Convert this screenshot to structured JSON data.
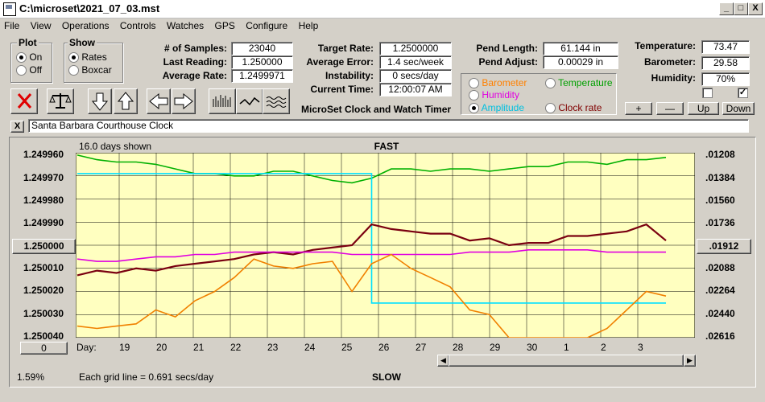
{
  "window": {
    "title": "C:\\microset\\2021_07_03.mst"
  },
  "window_controls": {
    "minimize": "_",
    "maximize": "□",
    "close": "X"
  },
  "menu": [
    "File",
    "View",
    "Operations",
    "Controls",
    "Watches",
    "GPS",
    "Configure",
    "Help"
  ],
  "plot_group": {
    "title": "Plot",
    "options": [
      "On",
      "Off"
    ],
    "selected": "On"
  },
  "show_group": {
    "title": "Show",
    "options": [
      "Rates",
      "Boxcar"
    ],
    "selected": "Rates"
  },
  "stats": {
    "samples_label": "# of Samples:",
    "samples": "23040",
    "last_reading_label": "Last Reading:",
    "last_reading": "1.250000",
    "average_rate_label": "Average Rate:",
    "average_rate": "1.2499971"
  },
  "rates": {
    "target_rate_label": "Target Rate:",
    "target_rate": "1.2500000",
    "average_error_label": "Average Error:",
    "average_error": "1.4 sec/week",
    "instability_label": "Instability:",
    "instability": "0 secs/day",
    "current_time_label": "Current Time:",
    "current_time": "12:00:07 AM"
  },
  "pend": {
    "length_label": "Pend Length:",
    "length": "61.144 in",
    "adjust_label": "Pend Adjust:",
    "adjust": "0.00029 in"
  },
  "env": {
    "temperature_label": "Temperature:",
    "temperature": "73.47",
    "barometer_label": "Barometer:",
    "barometer": "29.58",
    "humidity_label": "Humidity:",
    "humidity": "70%"
  },
  "env_checks": [
    false,
    true
  ],
  "env_buttons": [
    "+",
    "—",
    "Up",
    "Down"
  ],
  "app_caption": "MicroSet Clock and Watch Timer",
  "overlay_options": [
    {
      "label": "Barometer",
      "color": "#ff8000",
      "selected": false
    },
    {
      "label": "Temperature",
      "color": "#00a000",
      "selected": false
    },
    {
      "label": "Humidity",
      "color": "#e000e0",
      "selected": false
    },
    {
      "label": "Amplitude",
      "color": "#00c0e0",
      "selected": true
    },
    {
      "label": "Clock rate",
      "color": "#800000",
      "selected": false
    }
  ],
  "clock_name": "Santa Barbara Courthouse Clock",
  "clear_label": "X",
  "chart_data": {
    "type": "line",
    "days_shown": "16.0 days shown",
    "top_label": "FAST",
    "bottom_label": "SLOW",
    "grid_note": "Each grid line = 0.691 secs/day",
    "left_axis": [
      "1.249960",
      "1.249970",
      "1.249980",
      "1.249990",
      "1.250000",
      "1.250010",
      "1.250020",
      "1.250030",
      "1.250040"
    ],
    "right_axis": [
      ".01208",
      ".01384",
      ".01560",
      ".01736",
      ".01912",
      ".02088",
      ".02264",
      ".02440",
      ".02616"
    ],
    "center_left": "1.250000",
    "center_right": ".01912",
    "day_prefix": "Day:",
    "days": [
      "19",
      "20",
      "21",
      "22",
      "23",
      "24",
      "25",
      "26",
      "27",
      "28",
      "29",
      "30",
      "1",
      "2",
      "3"
    ],
    "ylim": [
      1.24996,
      1.25004
    ],
    "series": [
      {
        "id": "temperature",
        "color": "#00b000",
        "values": [
          1.249961,
          1.249963,
          1.249964,
          1.249964,
          1.249965,
          1.249967,
          1.249969,
          1.249969,
          1.24997,
          1.24997,
          1.249968,
          1.249968,
          1.24997,
          1.249972,
          1.249973,
          1.249971,
          1.249967,
          1.249967,
          1.249968,
          1.249967,
          1.249967,
          1.249968,
          1.249967,
          1.249966,
          1.249966,
          1.249964,
          1.249964,
          1.249965,
          1.249963,
          1.249963,
          1.249962
        ]
      },
      {
        "id": "amplitude",
        "color": "#00e0ff",
        "values": [
          1.249969,
          1.249969,
          1.249969,
          1.249969,
          1.249969,
          1.249969,
          1.249969,
          1.249969,
          1.249969,
          1.249969,
          1.249969,
          1.249969,
          1.249969,
          1.249969,
          1.249969,
          1.250025,
          1.250025,
          1.250025,
          1.250025,
          1.250025,
          1.250025,
          1.250025,
          1.250025,
          1.250025,
          1.250025,
          1.250025,
          1.250025,
          1.250025,
          1.250025,
          1.250025,
          1.250025
        ]
      },
      {
        "id": "clock_rate",
        "color": "#7a0010",
        "values": [
          1.250013,
          1.250011,
          1.250012,
          1.25001,
          1.250011,
          1.250009,
          1.250008,
          1.250007,
          1.250006,
          1.250004,
          1.250003,
          1.250004,
          1.250002,
          1.250001,
          1.25,
          1.249991,
          1.249993,
          1.249994,
          1.249995,
          1.249995,
          1.249998,
          1.249997,
          1.25,
          1.249999,
          1.249999,
          1.249996,
          1.249996,
          1.249995,
          1.249994,
          1.249991,
          1.249998
        ]
      },
      {
        "id": "humidity",
        "color": "#e000e0",
        "values": [
          1.250006,
          1.250007,
          1.250007,
          1.250006,
          1.250005,
          1.250005,
          1.250004,
          1.250004,
          1.250003,
          1.250003,
          1.250003,
          1.250003,
          1.250003,
          1.250003,
          1.250004,
          1.250004,
          1.250004,
          1.250004,
          1.250004,
          1.250004,
          1.250003,
          1.250003,
          1.250003,
          1.250002,
          1.250002,
          1.250002,
          1.250002,
          1.250003,
          1.250003,
          1.250003,
          1.250003
        ]
      },
      {
        "id": "barometer",
        "color": "#f08000",
        "values": [
          1.250035,
          1.250036,
          1.250035,
          1.250034,
          1.250028,
          1.250031,
          1.250024,
          1.25002,
          1.250014,
          1.250006,
          1.250009,
          1.25001,
          1.250008,
          1.250007,
          1.25002,
          1.250008,
          1.250004,
          1.25001,
          1.250014,
          1.250018,
          1.250028,
          1.25003,
          1.25004,
          1.25004,
          1.25004,
          1.25004,
          1.25004,
          1.250036,
          1.250028,
          1.25002,
          1.250022
        ]
      }
    ]
  },
  "bottom_left_value": "0",
  "status_percent": "1.59%"
}
